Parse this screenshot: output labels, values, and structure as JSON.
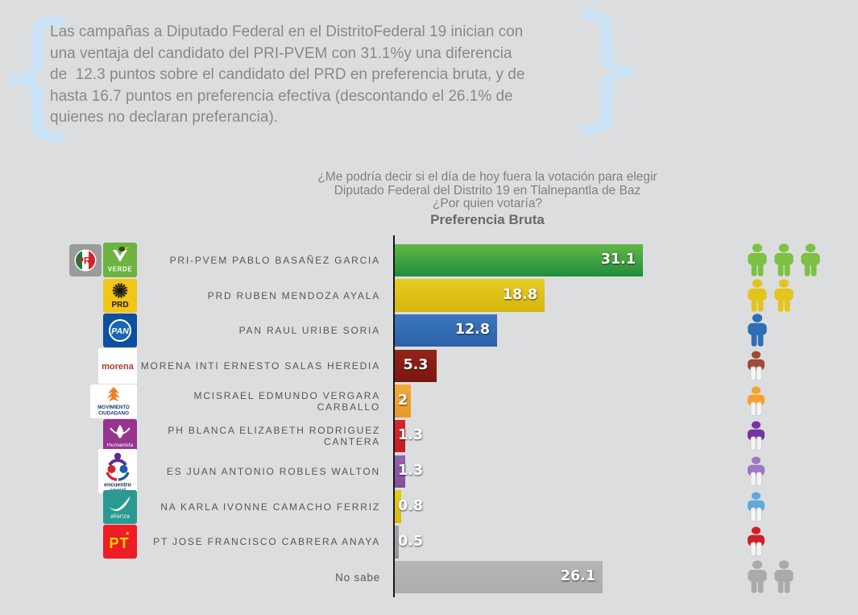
{
  "quote": {
    "lines": [
      "Las campañas a Diputado Federal en el DistritoFederal 19 inician con",
      "una ventaja del candidato del PRI-PVEM con 31.1%y una diferencia",
      "de  12.3 puntos sobre el candidato del PRD en preferencia bruta, y de",
      "hasta 16.7 puntos en preferencia efectiva (descontando el 26.1% de",
      "quienes no declaran preferancia)."
    ],
    "brace_color": "#cbe3f7",
    "text_color": "#87898c"
  },
  "chart_data": {
    "type": "bar",
    "orientation": "horizontal",
    "title": "¿Me podría decir si el día de hoy fuera la votación para elegir Diputado Federal del Distrito 19 en Tlalnepantla de Baz ¿Por quien votaría?",
    "title_lines": [
      "¿Me podría decir si el día de hoy fuera la votación para elegir",
      "Diputado Federal del Distrito 19 en Tlalnepantla de Baz",
      "¿Por quien votaría?"
    ],
    "subtitle": "Preferencia Bruta",
    "xlim": [
      0,
      32
    ],
    "grid": false,
    "legend": false,
    "categories": [
      "PRI-PVEM PABLO BASAÑEZ GARCIA",
      "PRD RUBEN MENDOZA AYALA",
      "PAN RAUL URIBE SORIA",
      "MORENA INTI ERNESTO SALAS HEREDIA",
      "MCISRAEL EDMUNDO VERGARA CARBALLO",
      "PH BLANCA ELIZABETH RODRIGUEZ CANTERA",
      "ES JUAN ANTONIO ROBLES WALTON",
      "NA KARLA IVONNE CAMACHO FERRIZ",
      "PT JOSE FRANCISCO CABRERA ANAYA",
      "No sabe"
    ],
    "values": [
      31.1,
      18.8,
      12.8,
      5.3,
      2,
      1.3,
      1.3,
      0.8,
      0.5,
      26.1
    ],
    "rows": [
      {
        "label": "PRI-PVEM PABLO BASAÑEZ GARCIA",
        "value": 31.1,
        "value_label": "31.1",
        "bar_top": "#63b845",
        "bar_bottom": "#1f8c3d",
        "icon_count": 3,
        "icon_partial": false,
        "icon_color": "#7cc143",
        "logos": [
          "pri",
          "verde"
        ],
        "plain_label": false
      },
      {
        "label": "PRD RUBEN MENDOZA AYALA",
        "value": 18.8,
        "value_label": "18.8",
        "bar_top": "#e9cb26",
        "bar_bottom": "#d5b60e",
        "icon_count": 2,
        "icon_partial": false,
        "icon_color": "#e3c41d",
        "logos": [
          "prd"
        ],
        "plain_label": false
      },
      {
        "label": "PAN RAUL URIBE SORIA",
        "value": 12.8,
        "value_label": "12.8",
        "bar_top": "#3a78bd",
        "bar_bottom": "#2b61a9",
        "icon_count": 1,
        "icon_partial": false,
        "icon_color": "#2f6eb5",
        "logos": [
          "pan"
        ],
        "plain_label": false
      },
      {
        "label": "MORENA INTI ERNESTO SALAS HEREDIA",
        "value": 5.3,
        "value_label": "5.3",
        "bar_top": "#93241a",
        "bar_bottom": "#7c160e",
        "icon_count": 1,
        "icon_partial": true,
        "icon_color": "#a04a38",
        "logos": [
          "morena"
        ],
        "plain_label": false
      },
      {
        "label": "MCISRAEL EDMUNDO VERGARA CARBALLO",
        "value": 2,
        "value_label": "2",
        "bar_top": "#f2a93b",
        "bar_bottom": "#e7992a",
        "icon_count": 1,
        "icon_partial": true,
        "icon_color": "#f7a02b",
        "logos": [
          "mc"
        ],
        "plain_label": false
      },
      {
        "label": "PH BLANCA ELIZABETH RODRIGUEZ CANTERA",
        "value": 1.3,
        "value_label": "1.3",
        "bar_top": "#d9272c",
        "bar_bottom": "#c51d22",
        "icon_count": 1,
        "icon_partial": true,
        "icon_color": "#7733a0",
        "logos": [
          "humanista"
        ],
        "plain_label": false
      },
      {
        "label": "ES JUAN ANTONIO ROBLES WALTON",
        "value": 1.3,
        "value_label": "1.3",
        "bar_top": "#9264ad",
        "bar_bottom": "#7e4f9c",
        "icon_count": 1,
        "icon_partial": true,
        "icon_color": "#9d78c4",
        "logos": [
          "es"
        ],
        "plain_label": false
      },
      {
        "label": "NA KARLA IVONNE CAMACHO FERRIZ",
        "value": 0.8,
        "value_label": "0.8",
        "bar_top": "#e8ca1c",
        "bar_bottom": "#d7b80f",
        "icon_count": 1,
        "icon_partial": true,
        "icon_color": "#5fa8dc",
        "logos": [
          "alianza"
        ],
        "plain_label": false
      },
      {
        "label": "PT JOSE FRANCISCO CABRERA ANAYA",
        "value": 0.5,
        "value_label": "0.5",
        "bar_top": "#a4a5a5",
        "bar_bottom": "#959696",
        "icon_count": 1,
        "icon_partial": true,
        "icon_color": "#d01f26",
        "logos": [
          "pt"
        ],
        "plain_label": false
      },
      {
        "label": "No sabe",
        "value": 26.1,
        "value_label": "26.1",
        "bar_top": "#b4b6b5",
        "bar_bottom": "#acaeae",
        "icon_count": 2,
        "icon_partial": false,
        "icon_color": "#a9abaa",
        "logos": [],
        "plain_label": true
      }
    ]
  },
  "logos": {
    "pri": {
      "bg": "#9b9b9b",
      "label": "PRI",
      "green": "#0b8043",
      "red": "#d8232a"
    },
    "verde": {
      "bg": "#6cb33f",
      "label": "VERDE"
    },
    "prd": {
      "bg": "#f3c517",
      "label": "PRD",
      "ink": "#1a1a1a"
    },
    "pan": {
      "bg": "#0f4f9f",
      "label": "PAN",
      "inner": "#1668b0"
    },
    "morena": {
      "bg": "#ffffff",
      "label": "morena",
      "text_color": "#ad3a2d"
    },
    "mc": {
      "bg": "#ffffff",
      "label_line1": "MOVIMIENTO",
      "label_line2": "CIUDADANO",
      "accent": "#f07e26",
      "text_color": "#173a7a"
    },
    "humanista": {
      "bg": "#97348e",
      "label": "Humanista"
    },
    "es": {
      "bg": "#ffffff",
      "label_line1": "encuentro",
      "label_line2": "social",
      "text_color": "#1c2e5e",
      "purple": "#5b2d8e",
      "red": "#d8232a",
      "blue": "#1b5cab"
    },
    "alianza": {
      "bg": "#2a9a91",
      "label": "alianza"
    },
    "pt": {
      "bg": "#ee1c25",
      "label": "PT",
      "text_color": "#ffd500"
    }
  }
}
